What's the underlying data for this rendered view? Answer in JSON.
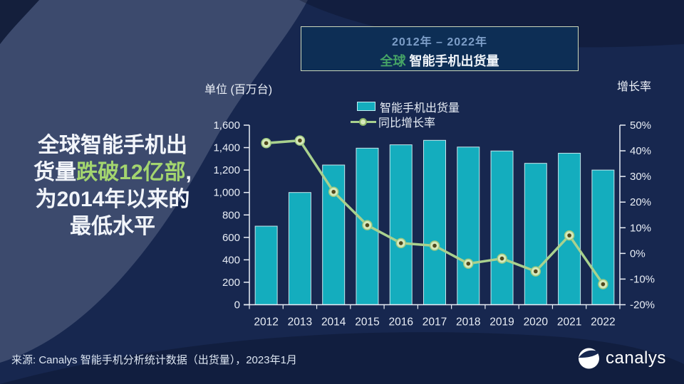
{
  "headline": {
    "line1": "全球智能手机出",
    "line2_prefix": "货量",
    "line2_highlight": "跌破12亿部",
    "line2_suffix": ",",
    "line3": "为2014年以来的",
    "line4": "最低水平"
  },
  "title_box": {
    "period": "2012年 – 2022年",
    "region": "全球",
    "subject": "智能手机出货量"
  },
  "chart_data": {
    "type": "bar+line",
    "title": "2012年 – 2022年 全球智能手机出货量",
    "categories": [
      "2012",
      "2013",
      "2014",
      "2015",
      "2016",
      "2017",
      "2018",
      "2019",
      "2020",
      "2021",
      "2022"
    ],
    "series": [
      {
        "name": "智能手机出货量",
        "type": "bar",
        "axis": "left",
        "unit": "百万台",
        "values": [
          700,
          1000,
          1245,
          1395,
          1425,
          1465,
          1405,
          1370,
          1260,
          1350,
          1200
        ],
        "color": "#14adbe"
      },
      {
        "name": "同比增长率",
        "type": "line",
        "axis": "right",
        "unit": "%",
        "values": [
          43,
          44,
          24,
          11,
          4,
          3,
          -4,
          -2,
          -7,
          7,
          -12
        ],
        "color": "#a9d18e"
      }
    ],
    "y_axis_left": {
      "title": "单位 (百万台)",
      "min": 0,
      "max": 1600,
      "tick_step": 200,
      "tick_labels": [
        "0",
        "200",
        "400",
        "600",
        "800",
        "1,000",
        "1,200",
        "1,400",
        "1,600"
      ]
    },
    "y_axis_right": {
      "title": "增长率",
      "min": -20,
      "max": 50,
      "tick_step": 10,
      "tick_labels": [
        "-20%",
        "-10%",
        "0%",
        "10%",
        "20%",
        "30%",
        "40%",
        "50%"
      ]
    },
    "legend_position": "top-center",
    "grid": false
  },
  "footer": {
    "source": "来源: Canalys 智能手机分析统计数据（出货量），2023年1月",
    "brand": "canalys"
  },
  "colors": {
    "background": "#17274f",
    "band": "#3c4a6d",
    "bar": "#14adbe",
    "line": "#a9d18e",
    "highlight_green": "#a3d56f",
    "axis_text": "#e9eef6"
  }
}
